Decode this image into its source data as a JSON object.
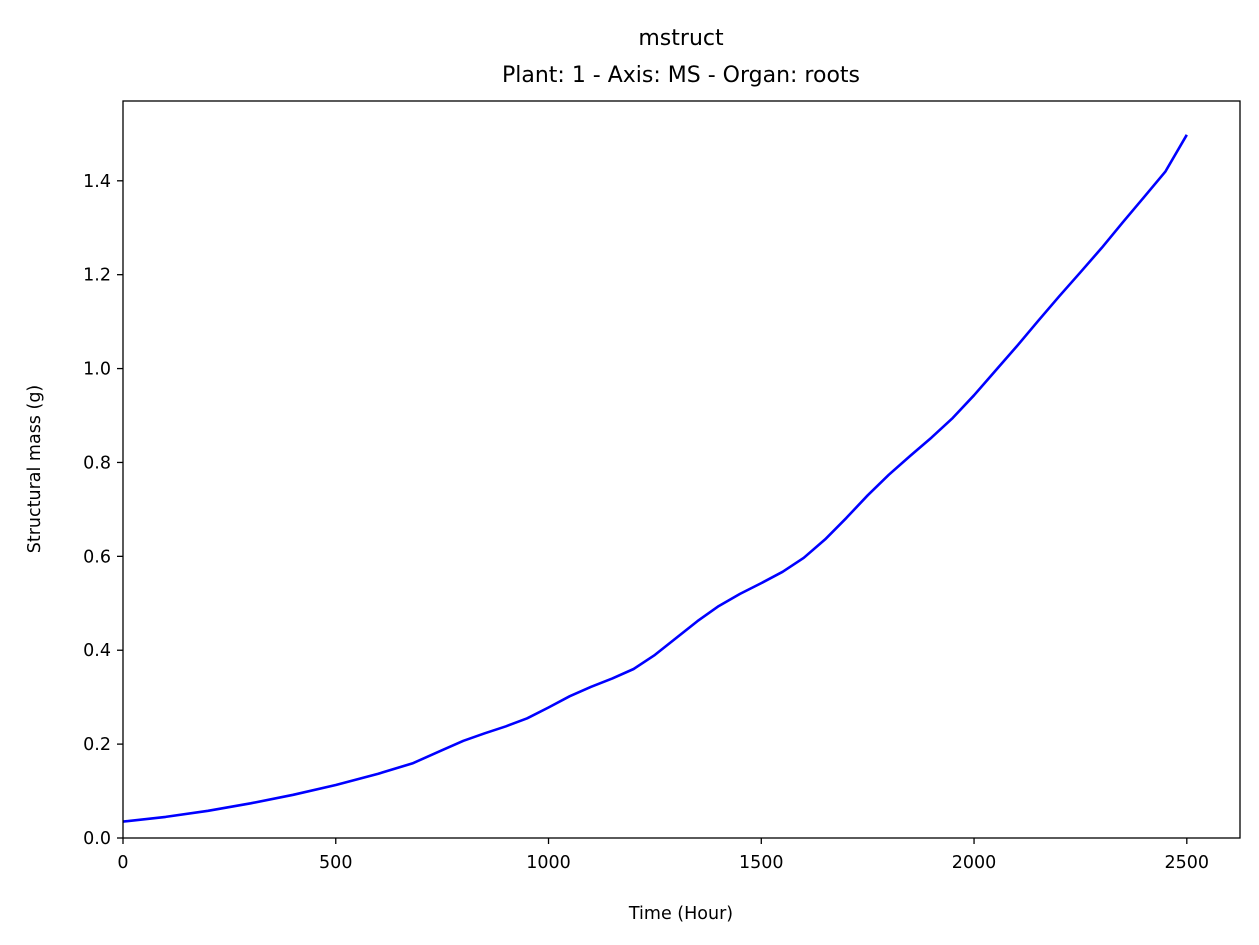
{
  "chart_data": {
    "type": "line",
    "title": "mstruct",
    "subtitle": "Plant: 1 - Axis: MS - Organ: roots",
    "xlabel": "Time (Hour)",
    "ylabel": "Structural mass (g)",
    "xlim": [
      0,
      2625
    ],
    "ylim": [
      0,
      1.57
    ],
    "xticks": [
      0,
      500,
      1000,
      1500,
      2000,
      2500
    ],
    "xtick_labels": [
      "0",
      "500",
      "1000",
      "1500",
      "2000",
      "2500"
    ],
    "yticks": [
      0.0,
      0.2,
      0.4,
      0.6,
      0.8,
      1.0,
      1.2,
      1.4
    ],
    "ytick_labels": [
      "0.0",
      "0.2",
      "0.4",
      "0.6",
      "0.8",
      "1.0",
      "1.2",
      "1.4"
    ],
    "grid": false,
    "legend": false,
    "series": [
      {
        "color": "#0000ff",
        "x": [
          0,
          100,
          200,
          300,
          400,
          500,
          600,
          680,
          750,
          800,
          850,
          900,
          950,
          1000,
          1050,
          1100,
          1150,
          1200,
          1250,
          1300,
          1350,
          1400,
          1450,
          1500,
          1550,
          1600,
          1650,
          1700,
          1750,
          1800,
          1850,
          1900,
          1950,
          2000,
          2050,
          2100,
          2150,
          2200,
          2250,
          2300,
          2350,
          2400,
          2450,
          2500
        ],
        "y": [
          0.035,
          0.045,
          0.058,
          0.074,
          0.092,
          0.113,
          0.137,
          0.159,
          0.187,
          0.207,
          0.223,
          0.238,
          0.255,
          0.278,
          0.302,
          0.322,
          0.34,
          0.36,
          0.39,
          0.426,
          0.462,
          0.494,
          0.52,
          0.543,
          0.567,
          0.597,
          0.636,
          0.682,
          0.73,
          0.774,
          0.814,
          0.853,
          0.895,
          0.943,
          0.995,
          1.047,
          1.101,
          1.154,
          1.205,
          1.257,
          1.312,
          1.366,
          1.42,
          1.498
        ]
      }
    ]
  }
}
